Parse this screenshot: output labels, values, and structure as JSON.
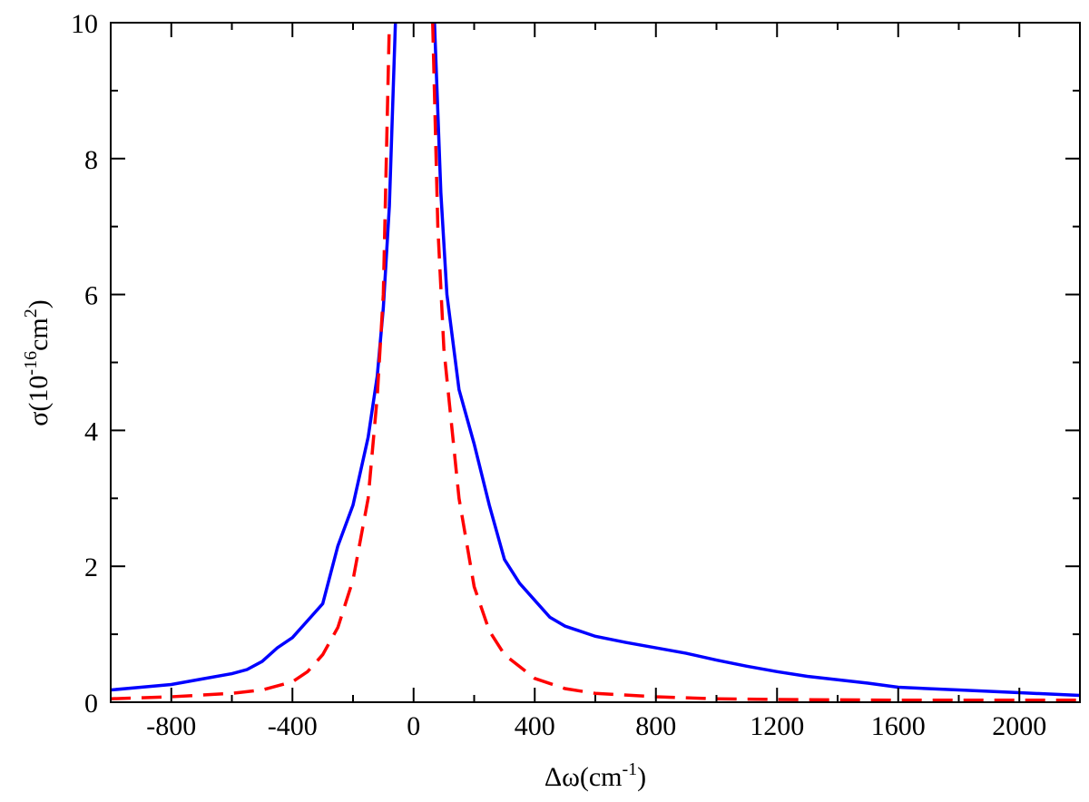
{
  "chart_data": {
    "type": "line",
    "xlabel": [
      {
        "text": "Δω(cm"
      },
      {
        "text": "-1",
        "sup": true
      },
      {
        "text": ")"
      }
    ],
    "ylabel": [
      {
        "text": "σ(10"
      },
      {
        "text": "-16",
        "sup": true
      },
      {
        "text": "cm"
      },
      {
        "text": "2",
        "sup": true
      },
      {
        "text": ")"
      }
    ],
    "xlim": [
      -1000,
      2200
    ],
    "ylim": [
      0,
      10
    ],
    "xticks": [
      -800,
      -400,
      0,
      400,
      800,
      1200,
      1600,
      2000
    ],
    "yticks": [
      0,
      2,
      4,
      6,
      8,
      10
    ],
    "xminorticks": [
      -1000,
      -600,
      -200,
      200,
      600,
      1000,
      1400,
      1800,
      2200
    ],
    "yminorticks": [
      1,
      3,
      5,
      7,
      9
    ],
    "series": [
      {
        "color": "#0000ff",
        "dash": false,
        "x": [
          -1000,
          -900,
          -800,
          -700,
          -600,
          -550,
          -500,
          -450,
          -400,
          -350,
          -300,
          -250,
          -200,
          -150,
          -120,
          -100,
          -80,
          -60,
          0,
          69,
          90,
          110,
          150,
          200,
          250,
          300,
          350,
          400,
          450,
          500,
          600,
          700,
          800,
          900,
          1000,
          1100,
          1200,
          1300,
          1400,
          1500,
          1600,
          1800,
          2000,
          2200
        ],
        "values": [
          0.18,
          0.22,
          0.26,
          0.34,
          0.42,
          0.48,
          0.6,
          0.8,
          0.95,
          1.2,
          1.45,
          2.3,
          2.9,
          3.9,
          4.8,
          5.8,
          7.3,
          10,
          null,
          10,
          7.5,
          6,
          4.6,
          3.8,
          2.9,
          2.1,
          1.75,
          1.5,
          1.25,
          1.12,
          0.97,
          0.88,
          0.8,
          0.72,
          0.62,
          0.53,
          0.45,
          0.38,
          0.33,
          0.28,
          0.22,
          0.18,
          0.14,
          0.1
        ]
      },
      {
        "color": "#ff0000",
        "dash": true,
        "x": [
          -1000,
          -800,
          -600,
          -500,
          -400,
          -350,
          -300,
          -250,
          -200,
          -150,
          -120,
          -100,
          -80,
          0,
          63,
          80,
          100,
          150,
          200,
          250,
          300,
          400,
          500,
          600,
          800,
          1000,
          1200,
          1600,
          2200
        ],
        "values": [
          0.05,
          0.08,
          0.13,
          0.18,
          0.3,
          0.45,
          0.7,
          1.1,
          1.8,
          3.0,
          4.5,
          6,
          10,
          null,
          10,
          7,
          5.2,
          3.0,
          1.7,
          1.05,
          0.7,
          0.35,
          0.2,
          0.13,
          0.08,
          0.05,
          0.04,
          0.03,
          0.03
        ]
      }
    ]
  }
}
